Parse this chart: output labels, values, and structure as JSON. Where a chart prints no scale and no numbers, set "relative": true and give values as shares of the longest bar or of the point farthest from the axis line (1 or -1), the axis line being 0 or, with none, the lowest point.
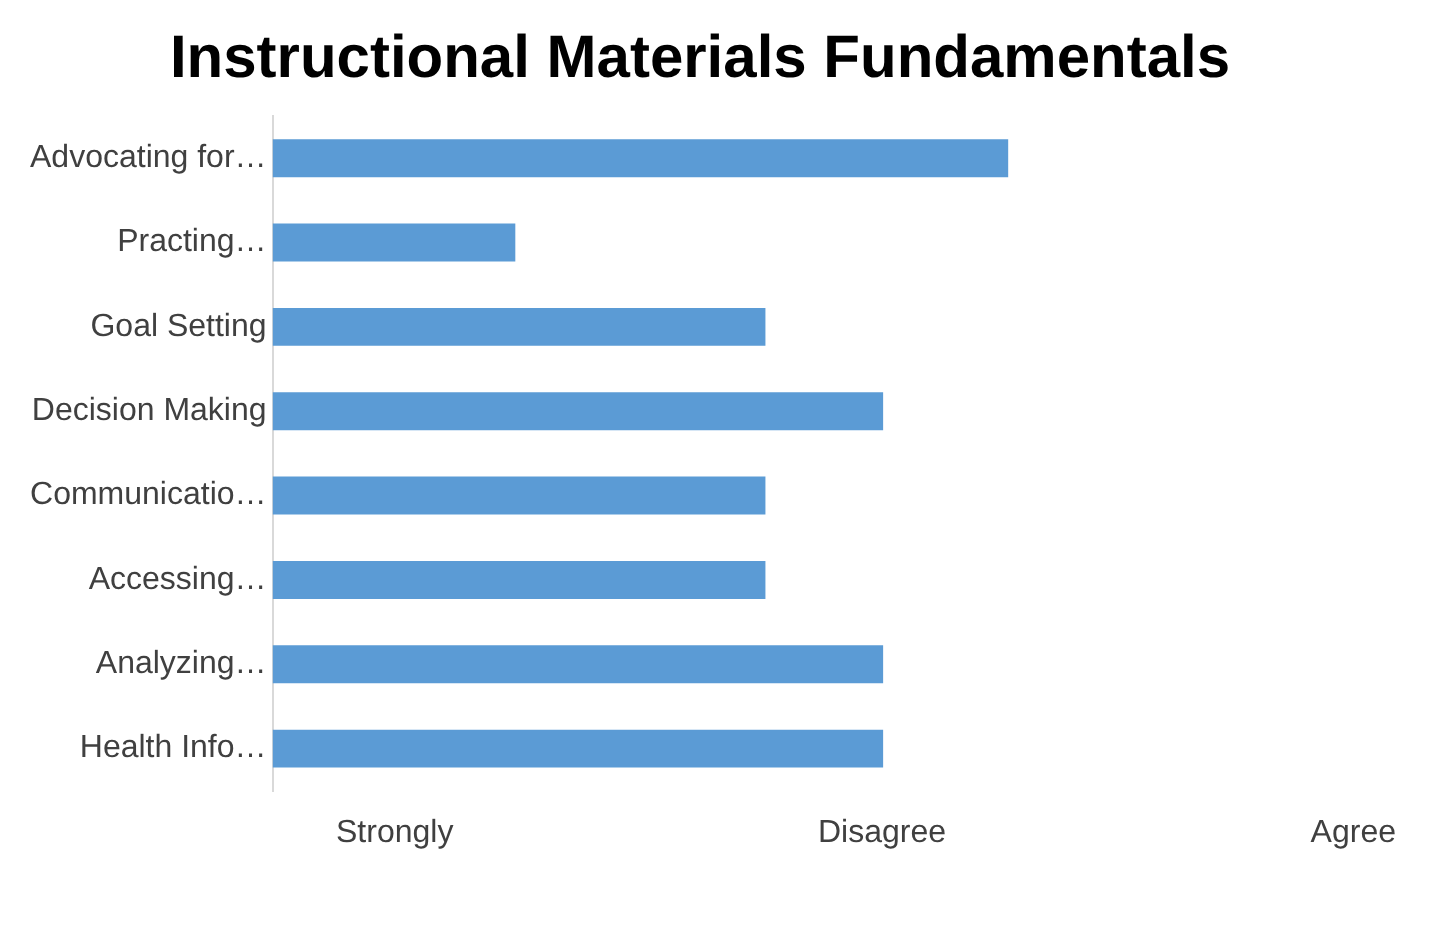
{
  "chart_data": {
    "type": "bar",
    "orientation": "horizontal",
    "title": "Instructional Materials Fundamentals",
    "categories": [
      "Advocating for…",
      "Practing…",
      "Goal Setting",
      "Decision Making",
      "Communicatio…",
      "Accessing…",
      "Analyzing…",
      "Health Info…"
    ],
    "values": [
      1,
      0.33,
      0.67,
      0.83,
      0.67,
      0.67,
      0.83,
      0.83
    ],
    "color": "#5b9bd5",
    "relative": true,
    "annotations": [
      "Strongly",
      "Disagree",
      "Agree"
    ],
    "legend": false
  }
}
